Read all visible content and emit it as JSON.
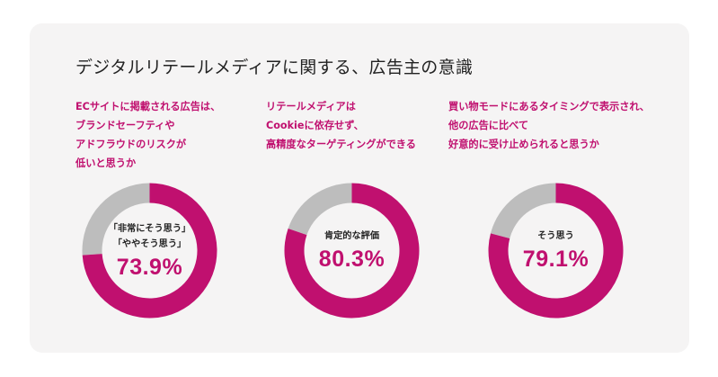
{
  "title": "デジタルリテールメディアに関する、広告主の意識",
  "colors": {
    "accent": "#c0106f",
    "remainder": "#bdbdbd",
    "background": "#f5f4f4"
  },
  "chart_data": [
    {
      "type": "pie",
      "question_lines": [
        "ECサイトに掲載される広告は、",
        "ブランドセーフティや",
        "アドフラウドのリスクが",
        "低いと思うか"
      ],
      "center_label_lines": [
        "「非常にそう思う」",
        "「ややそう思う」"
      ],
      "value": 73.9,
      "value_label": "73.9%"
    },
    {
      "type": "pie",
      "question_lines": [
        "リテールメディアは",
        "Cookieに依存せず、",
        "高精度なターゲティングができる"
      ],
      "center_label_lines": [
        "肯定的な評価"
      ],
      "value": 80.3,
      "value_label": "80.3%"
    },
    {
      "type": "pie",
      "question_lines": [
        "買い物モードにあるタイミングで表示され、",
        "他の広告に比べて",
        "好意的に受け止められると思うか"
      ],
      "center_label_lines": [
        "そう思う"
      ],
      "value": 79.1,
      "value_label": "79.1%"
    }
  ]
}
